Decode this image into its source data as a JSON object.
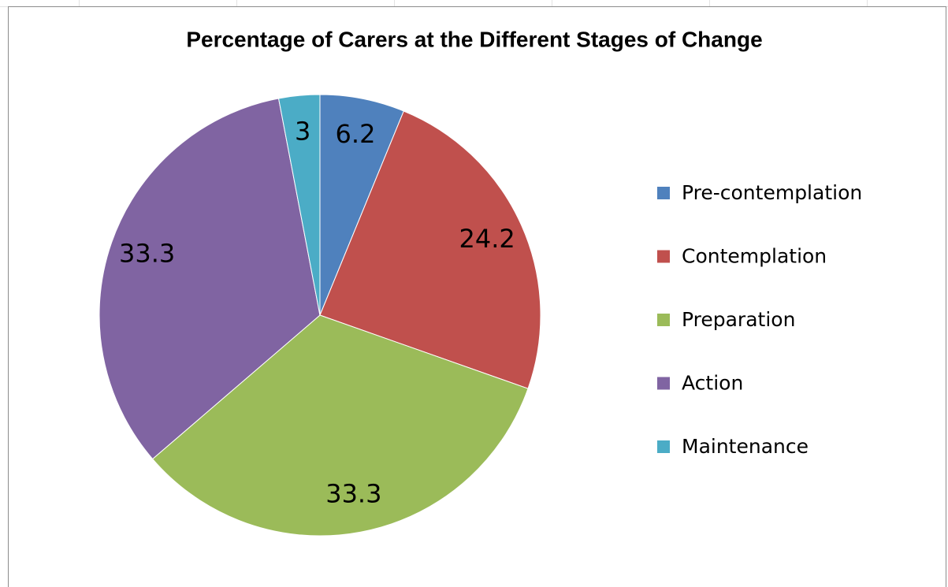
{
  "chart_data": {
    "type": "pie",
    "title": "Percentage of Carers at the Different Stages of Change",
    "categories": [
      "Pre-contemplation",
      "Contemplation",
      "Preparation",
      "Action",
      "Maintenance"
    ],
    "values": [
      6.2,
      24.2,
      33.3,
      33.3,
      3
    ],
    "colors": [
      "#4f81bd",
      "#c0504d",
      "#9bbb59",
      "#8064a2",
      "#4bacc6"
    ],
    "legend": "right"
  }
}
